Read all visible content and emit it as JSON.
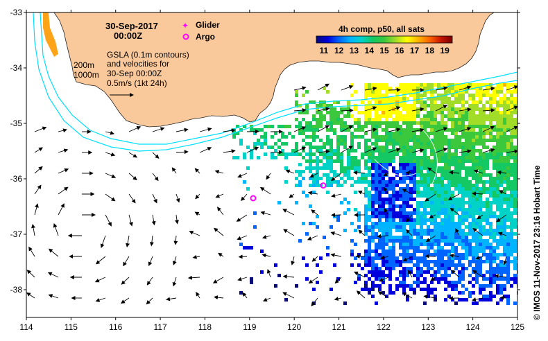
{
  "title": {
    "date": "30-Sep-2017",
    "time": "00:00Z"
  },
  "legend": {
    "glider_label": "Glider",
    "argo_label": "Argo",
    "glider_color": "#ff00ff",
    "argo_color": "#ff00ff"
  },
  "description": {
    "lines": [
      "GSLA (0.1m contours)",
      "and velocities for",
      "30-Sep 00:00Z",
      "0.5m/s (1kt 24h)"
    ]
  },
  "depth_labels": [
    "200m",
    "1000m"
  ],
  "colorbar": {
    "title": "4h comp, p50, all sats",
    "ticks": [
      "11",
      "12",
      "13",
      "14",
      "15",
      "16",
      "17",
      "18",
      "19"
    ],
    "min": 10.5,
    "max": 19.5,
    "colors": [
      "#0a0a78",
      "#0000dc",
      "#0064ff",
      "#00b4ff",
      "#00d2c8",
      "#14c864",
      "#3cc83c",
      "#a0dc28",
      "#ffff00",
      "#ffb400",
      "#ff6400",
      "#c81400",
      "#780000"
    ]
  },
  "axes": {
    "lon_ticks": [
      "114",
      "115",
      "116",
      "117",
      "118",
      "119",
      "120",
      "121",
      "122",
      "123",
      "124",
      "125"
    ],
    "lat_ticks": [
      "-33",
      "-34",
      "-35",
      "-36",
      "-37",
      "-38"
    ],
    "lon_range": [
      114,
      125
    ],
    "lat_range": [
      -38.5,
      -33
    ]
  },
  "colors": {
    "land": "#f9c89b",
    "isobath": "#00e0ff",
    "arrow": "#000000"
  },
  "argo_floats": [
    {
      "lon": 119.08,
      "lat": -36.35
    },
    {
      "lon": 120.65,
      "lat": -36.12
    }
  ],
  "side_label": "© IMOS 11-Nov-2017 23:16 Hobart Time"
}
